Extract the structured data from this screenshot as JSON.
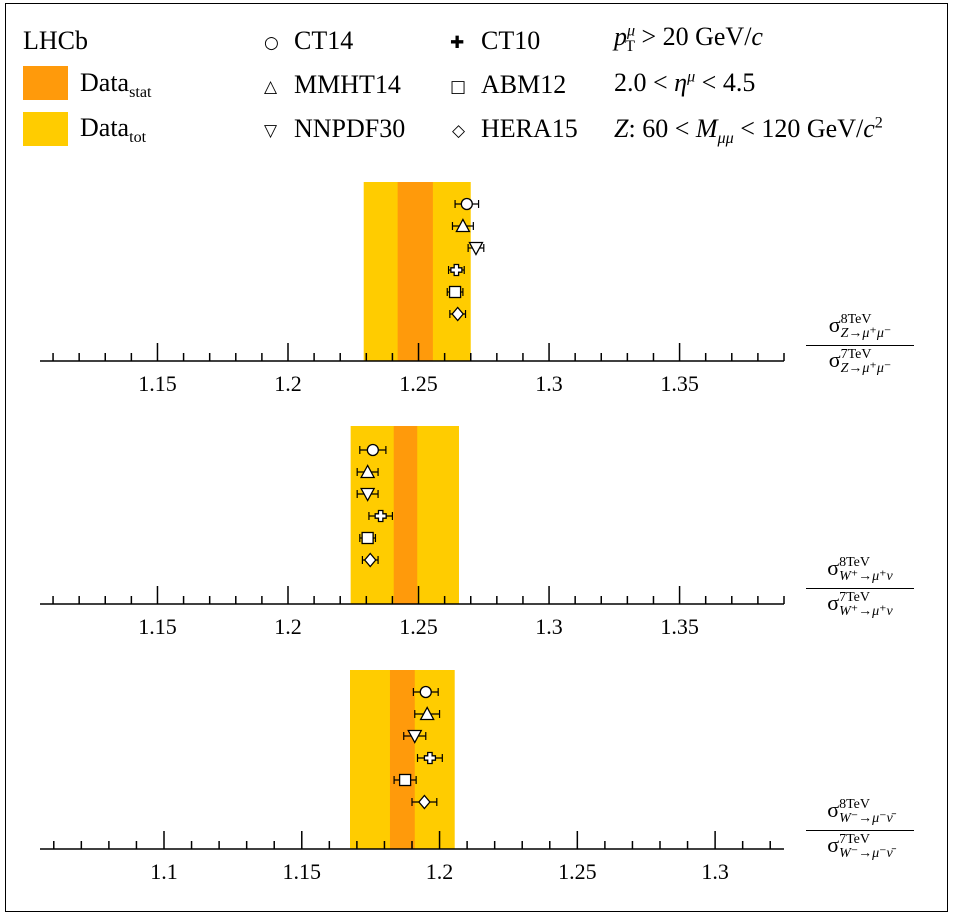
{
  "legend": {
    "experiment": "LHCb",
    "data_stat_main": "Data",
    "data_stat_sub": "stat",
    "data_tot_main": "Data",
    "data_tot_sub": "tot",
    "pdfs": [
      "CT14",
      "MMHT14",
      "NNPDF30",
      "CT10",
      "ABM12",
      "HERA15"
    ],
    "cut_pt_var": "p",
    "cut_pt_sub": "T",
    "cut_pt_sup": "μ",
    "cut_pt_rest": " > 20 GeV/",
    "cut_pt_unit": "c",
    "cut_eta_lo": "2.0 < ",
    "cut_eta_var": "η",
    "cut_eta_sup": "μ",
    "cut_eta_hi": " < 4.5",
    "cut_z_var": "Z",
    "cut_z_mid": ": 60 < ",
    "cut_z_m": "M",
    "cut_z_msub": "μμ",
    "cut_z_hi": " < 120 GeV/",
    "cut_z_unit": "c",
    "cut_z_exp": "2"
  },
  "colors": {
    "stat": "#ff9a0b",
    "tot": "#ffcc00",
    "marker": "#000000"
  },
  "chart_data": [
    {
      "type": "scatter",
      "ratio_label": {
        "num_energy": "8TeV",
        "den_energy": "7TeV",
        "process": "Z→μ⁺μ⁻"
      },
      "xlim": [
        1.105,
        1.39
      ],
      "tick_labels": [
        "1.15",
        "1.2",
        "1.25",
        "1.3",
        "1.35"
      ],
      "ticks": [
        1.15,
        1.2,
        1.25,
        1.3,
        1.35
      ],
      "minor_step": 0.01,
      "data": {
        "central": 1.249,
        "stat_band": [
          1.242,
          1.2555
        ],
        "tot_band": [
          1.229,
          1.27
        ]
      },
      "predictions": [
        {
          "name": "CT14",
          "marker": "circle",
          "value": 1.2685,
          "err": 0.0045
        },
        {
          "name": "MMHT14",
          "marker": "triangle-up",
          "value": 1.267,
          "err": 0.004
        },
        {
          "name": "NNPDF30",
          "marker": "triangle-down",
          "value": 1.272,
          "err": 0.003
        },
        {
          "name": "CT10",
          "marker": "cross",
          "value": 1.2645,
          "err": 0.003
        },
        {
          "name": "ABM12",
          "marker": "square",
          "value": 1.264,
          "err": 0.003
        },
        {
          "name": "HERA15",
          "marker": "diamond",
          "value": 1.265,
          "err": 0.003
        }
      ]
    },
    {
      "type": "scatter",
      "ratio_label": {
        "num_energy": "8TeV",
        "den_energy": "7TeV",
        "process": "W⁺→μ⁺ν"
      },
      "xlim": [
        1.105,
        1.39
      ],
      "tick_labels": [
        "1.15",
        "1.2",
        "1.25",
        "1.3",
        "1.35"
      ],
      "ticks": [
        1.15,
        1.2,
        1.25,
        1.3,
        1.35
      ],
      "minor_step": 0.01,
      "data": {
        "central": 1.245,
        "stat_band": [
          1.2405,
          1.2495
        ],
        "tot_band": [
          1.224,
          1.2655
        ]
      },
      "predictions": [
        {
          "name": "CT14",
          "marker": "circle",
          "value": 1.2325,
          "err": 0.005
        },
        {
          "name": "MMHT14",
          "marker": "triangle-up",
          "value": 1.2305,
          "err": 0.004
        },
        {
          "name": "NNPDF30",
          "marker": "triangle-down",
          "value": 1.2305,
          "err": 0.004
        },
        {
          "name": "CT10",
          "marker": "cross",
          "value": 1.2355,
          "err": 0.0045
        },
        {
          "name": "ABM12",
          "marker": "square",
          "value": 1.2305,
          "err": 0.003
        },
        {
          "name": "HERA15",
          "marker": "diamond",
          "value": 1.2315,
          "err": 0.003
        }
      ]
    },
    {
      "type": "scatter",
      "ratio_label": {
        "num_energy": "8TeV",
        "den_energy": "7TeV",
        "process": "W⁻→μ⁻ν̄"
      },
      "xlim": [
        1.055,
        1.325
      ],
      "tick_labels": [
        "1.1",
        "1.15",
        "1.2",
        "1.25",
        "1.3"
      ],
      "ticks": [
        1.1,
        1.15,
        1.2,
        1.25,
        1.3
      ],
      "minor_step": 0.01,
      "data": {
        "central": 1.1865,
        "stat_band": [
          1.182,
          1.191
        ],
        "tot_band": [
          1.1675,
          1.2055
        ]
      },
      "predictions": [
        {
          "name": "CT14",
          "marker": "circle",
          "value": 1.195,
          "err": 0.0045
        },
        {
          "name": "MMHT14",
          "marker": "triangle-up",
          "value": 1.1955,
          "err": 0.0045
        },
        {
          "name": "NNPDF30",
          "marker": "triangle-down",
          "value": 1.191,
          "err": 0.004
        },
        {
          "name": "CT10",
          "marker": "cross",
          "value": 1.1965,
          "err": 0.0045
        },
        {
          "name": "ABM12",
          "marker": "square",
          "value": 1.1875,
          "err": 0.004
        },
        {
          "name": "HERA15",
          "marker": "diamond",
          "value": 1.1945,
          "err": 0.0045
        }
      ]
    }
  ]
}
